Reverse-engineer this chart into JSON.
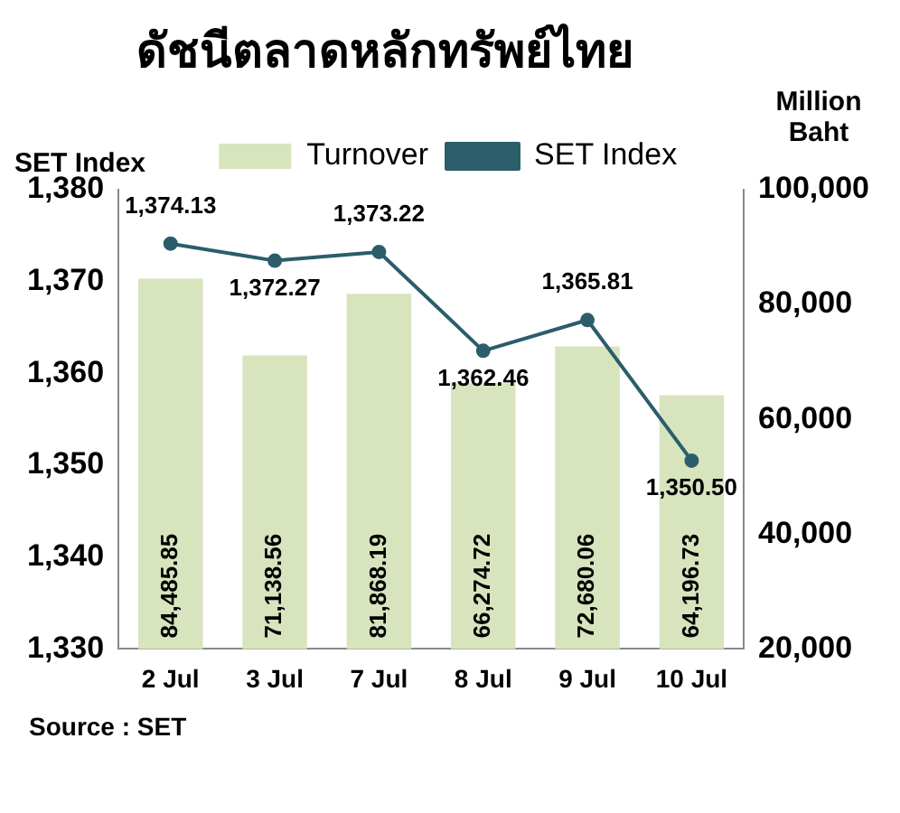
{
  "chart_data": {
    "type": "bar",
    "title": "ดัชนีตลาดหลักทรัพย์ไทย",
    "ylabel": "SET Index",
    "y2label": "Million Baht",
    "categories": [
      "2 Jul",
      "3 Jul",
      "7 Jul",
      "8 Jul",
      "9 Jul",
      "10 Jul"
    ],
    "series": [
      {
        "name": "Turnover",
        "axis": "y2",
        "color": "#d7e4bd",
        "values": [
          84485.85,
          71138.56,
          81868.19,
          66274.72,
          72680.06,
          64196.73
        ],
        "value_labels": [
          "84,485.85",
          "71,138.56",
          "81,868.19",
          "66,274.72",
          "72,680.06",
          "64,196.73"
        ]
      },
      {
        "name": "SET Index",
        "type": "line",
        "color": "#2b5d6b",
        "marker": "circle",
        "values": [
          1374.13,
          1372.27,
          1373.22,
          1362.46,
          1365.81,
          1350.5
        ],
        "value_labels": [
          "1,374.13",
          "1,372.27",
          "1,373.22",
          "1,362.46",
          "1,365.81",
          "1,350.50"
        ]
      }
    ],
    "ylim": [
      1330,
      1380
    ],
    "yticks": [
      {
        "value": 1330,
        "label": "1,330"
      },
      {
        "value": 1340,
        "label": "1,340"
      },
      {
        "value": 1350,
        "label": "1,350"
      },
      {
        "value": 1360,
        "label": "1,360"
      },
      {
        "value": 1370,
        "label": "1,370"
      },
      {
        "value": 1380,
        "label": "1,380"
      }
    ],
    "y2lim": [
      20000,
      100000
    ],
    "y2ticks": [
      {
        "value": 20000,
        "label": "20,000"
      },
      {
        "value": 40000,
        "label": "40,000"
      },
      {
        "value": 60000,
        "label": "60,000"
      },
      {
        "value": 80000,
        "label": "80,000"
      },
      {
        "value": 100000,
        "label": "100,000"
      }
    ],
    "grid": false,
    "legend": "top",
    "annotations": [
      "Source : SET"
    ]
  }
}
